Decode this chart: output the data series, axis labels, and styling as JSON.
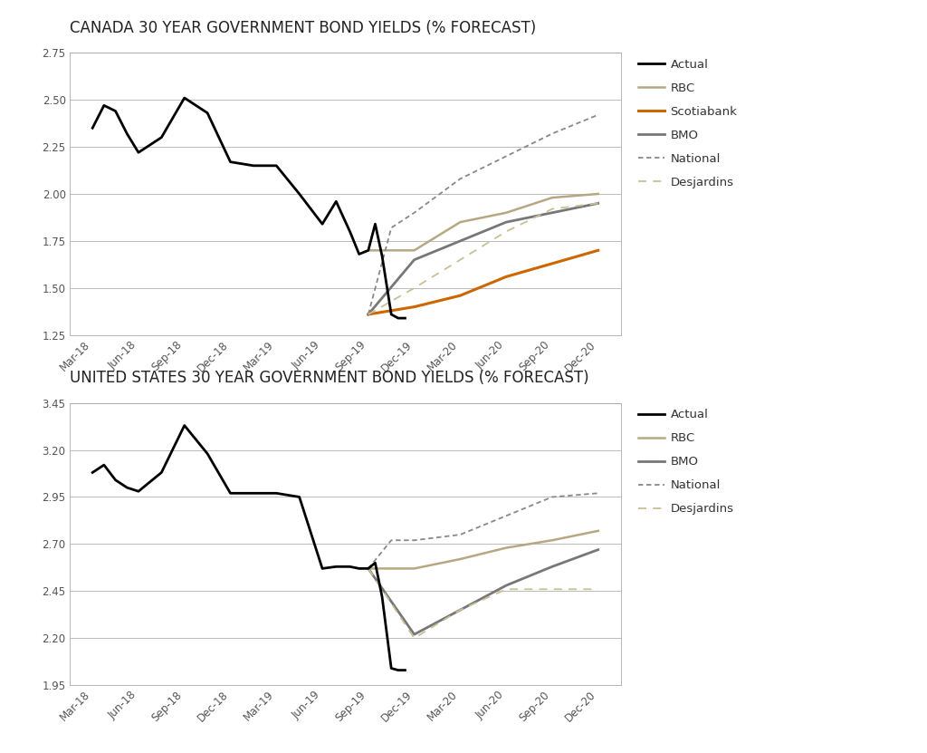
{
  "title1": "CANADA 30 YEAR GOVERNMENT BOND YIELDS (% FORECAST)",
  "title2": "UNITED STATES 30 YEAR GOVERNMENT BOND YIELDS (% FORECAST)",
  "x_labels": [
    "Mar-18",
    "Jun-18",
    "Sep-18",
    "Dec-18",
    "Mar-19",
    "Jun-19",
    "Sep-19",
    "Dec-19",
    "Mar-20",
    "Jun-20",
    "Sep-20",
    "Dec-20"
  ],
  "ca_actual_x": [
    0,
    0.25,
    0.5,
    0.75,
    1.0,
    1.5,
    2.0,
    2.5,
    3.0,
    3.5,
    4.0,
    4.5,
    5.0,
    5.3,
    5.6,
    5.8,
    6.0,
    6.15,
    6.3,
    6.5,
    6.65,
    6.8
  ],
  "ca_actual_y": [
    2.35,
    2.47,
    2.44,
    2.32,
    2.22,
    2.3,
    2.51,
    2.43,
    2.17,
    2.15,
    2.15,
    2.0,
    1.84,
    1.96,
    1.8,
    1.68,
    1.7,
    1.84,
    1.67,
    1.36,
    1.34,
    1.34
  ],
  "ca_rbc_x": [
    6.0,
    7.0,
    8.0,
    9.0,
    10.0,
    11.0
  ],
  "ca_rbc_y": [
    1.7,
    1.7,
    1.85,
    1.9,
    1.98,
    2.0
  ],
  "ca_scotia_x": [
    6.0,
    7.0,
    8.0,
    9.0,
    10.0,
    11.0
  ],
  "ca_scotia_y": [
    1.36,
    1.4,
    1.46,
    1.56,
    1.63,
    1.7
  ],
  "ca_bmo_x": [
    6.0,
    7.0,
    8.0,
    9.0,
    10.0,
    11.0
  ],
  "ca_bmo_y": [
    1.36,
    1.65,
    1.75,
    1.85,
    1.9,
    1.95
  ],
  "ca_national_x": [
    6.0,
    6.5,
    7.0,
    8.0,
    9.0,
    10.0,
    11.0
  ],
  "ca_national_y": [
    1.36,
    1.82,
    1.9,
    2.08,
    2.2,
    2.32,
    2.42
  ],
  "ca_desjardins_x": [
    6.0,
    7.0,
    8.0,
    9.0,
    10.0,
    11.0
  ],
  "ca_desjardins_y": [
    1.36,
    1.5,
    1.65,
    1.8,
    1.92,
    1.95
  ],
  "ca_ylim": [
    1.25,
    2.75
  ],
  "ca_yticks": [
    1.25,
    1.5,
    1.75,
    2.0,
    2.25,
    2.5,
    2.75
  ],
  "us_actual_x": [
    0,
    0.25,
    0.5,
    0.75,
    1.0,
    1.5,
    2.0,
    2.5,
    3.0,
    3.5,
    4.0,
    4.5,
    5.0,
    5.3,
    5.6,
    5.8,
    6.0,
    6.15,
    6.3,
    6.5,
    6.65,
    6.8
  ],
  "us_actual_y": [
    3.08,
    3.12,
    3.04,
    3.0,
    2.98,
    3.08,
    3.33,
    3.18,
    2.97,
    2.97,
    2.97,
    2.95,
    2.57,
    2.58,
    2.58,
    2.57,
    2.57,
    2.6,
    2.42,
    2.04,
    2.03,
    2.03
  ],
  "us_rbc_x": [
    6.0,
    7.0,
    8.0,
    9.0,
    10.0,
    11.0
  ],
  "us_rbc_y": [
    2.57,
    2.57,
    2.62,
    2.68,
    2.72,
    2.77
  ],
  "us_bmo_x": [
    6.0,
    7.0,
    8.0,
    9.0,
    10.0,
    11.0
  ],
  "us_bmo_y": [
    2.57,
    2.22,
    2.35,
    2.48,
    2.58,
    2.67
  ],
  "us_national_x": [
    6.0,
    6.5,
    7.0,
    8.0,
    9.0,
    10.0,
    11.0
  ],
  "us_national_y": [
    2.57,
    2.72,
    2.72,
    2.75,
    2.85,
    2.95,
    2.97
  ],
  "us_desjardins_x": [
    6.0,
    7.0,
    8.0,
    9.0,
    10.0,
    11.0
  ],
  "us_desjardins_y": [
    2.57,
    2.2,
    2.35,
    2.46,
    2.46,
    2.46
  ],
  "us_ylim": [
    1.95,
    3.45
  ],
  "us_yticks": [
    1.95,
    2.2,
    2.45,
    2.7,
    2.95,
    3.2,
    3.45
  ],
  "color_actual": "#000000",
  "color_rbc": "#b5a882",
  "color_scotia": "#cc6600",
  "color_bmo": "#777777",
  "color_national": "#888888",
  "color_desjardins": "#c8bf96",
  "background": "#ffffff",
  "grid_color": "#bbbbbb",
  "title_fontsize": 12,
  "tick_fontsize": 8.5,
  "legend_fontsize": 9.5
}
